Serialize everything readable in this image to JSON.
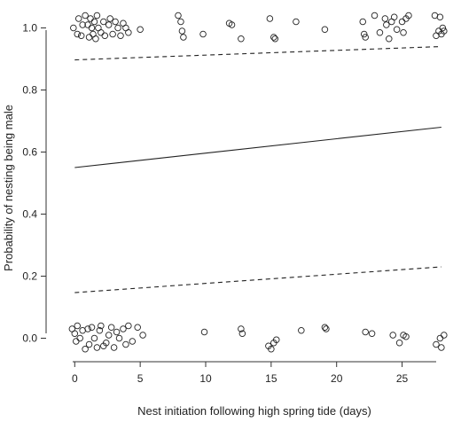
{
  "chart_data": {
    "type": "scatter",
    "title": "",
    "xlabel": "Nest initiation following high spring tide (days)",
    "ylabel": "Probability of nesting being male",
    "xlim": [
      -2,
      29.5
    ],
    "ylim": [
      -0.09,
      1.09
    ],
    "xticks": [
      0,
      5,
      10,
      15,
      20,
      25
    ],
    "yticks": [
      0.0,
      0.2,
      0.4,
      0.6,
      0.8,
      1.0
    ],
    "ytick_labels": [
      "0.0",
      "0.2",
      "0.4",
      "0.6",
      "0.8",
      "1.0"
    ],
    "grid": false,
    "legend": "none",
    "colors": {
      "points": "#222222",
      "lines": "#222222",
      "axis": "#333333"
    },
    "fitted": {
      "name": "",
      "style": "solid",
      "x": [
        0,
        28
      ],
      "y": [
        0.55,
        0.68
      ]
    },
    "ci_lower": {
      "name": "",
      "style": "dashed",
      "x": [
        0,
        28
      ],
      "y": [
        0.147,
        0.23
      ]
    },
    "ci_upper": {
      "name": "",
      "style": "dashed",
      "x": [
        0,
        28
      ],
      "y": [
        0.897,
        0.94
      ]
    },
    "series": [
      {
        "name": "",
        "marker": "open-circle",
        "points": [
          [
            -0.1,
            1.0
          ],
          [
            0.2,
            0.98
          ],
          [
            0.3,
            1.03
          ],
          [
            0.5,
            0.975
          ],
          [
            0.6,
            1.01
          ],
          [
            0.8,
            1.04
          ],
          [
            1.0,
            1.01
          ],
          [
            1.1,
            0.97
          ],
          [
            1.2,
            1.03
          ],
          [
            1.3,
            1.0
          ],
          [
            1.4,
            0.98
          ],
          [
            1.5,
            1.02
          ],
          [
            1.6,
            0.965
          ],
          [
            1.7,
            1.04
          ],
          [
            1.8,
            1.0
          ],
          [
            2.0,
            0.985
          ],
          [
            2.2,
            1.02
          ],
          [
            2.3,
            0.975
          ],
          [
            2.6,
            1.01
          ],
          [
            2.7,
            1.03
          ],
          [
            2.9,
            0.98
          ],
          [
            3.1,
            1.02
          ],
          [
            3.3,
            1.0
          ],
          [
            3.5,
            0.975
          ],
          [
            3.7,
            1.015
          ],
          [
            3.9,
            1.0
          ],
          [
            4.1,
            0.985
          ],
          [
            5.0,
            0.995
          ],
          [
            7.9,
            1.04
          ],
          [
            8.1,
            1.02
          ],
          [
            8.2,
            0.99
          ],
          [
            8.3,
            0.97
          ],
          [
            9.8,
            0.98
          ],
          [
            11.8,
            1.015
          ],
          [
            12.0,
            1.01
          ],
          [
            12.7,
            0.965
          ],
          [
            14.9,
            1.03
          ],
          [
            15.2,
            0.97
          ],
          [
            15.3,
            0.965
          ],
          [
            16.9,
            1.02
          ],
          [
            19.1,
            0.995
          ],
          [
            22.0,
            1.02
          ],
          [
            22.1,
            0.98
          ],
          [
            22.2,
            0.97
          ],
          [
            22.9,
            1.04
          ],
          [
            23.3,
            0.985
          ],
          [
            23.7,
            1.03
          ],
          [
            23.8,
            1.01
          ],
          [
            24.0,
            0.965
          ],
          [
            24.2,
            1.02
          ],
          [
            24.4,
            1.035
          ],
          [
            24.6,
            0.995
          ],
          [
            25.0,
            1.02
          ],
          [
            25.1,
            0.985
          ],
          [
            25.3,
            1.03
          ],
          [
            25.5,
            1.04
          ],
          [
            27.5,
            1.04
          ],
          [
            27.6,
            0.975
          ],
          [
            27.8,
            0.99
          ],
          [
            27.9,
            1.035
          ],
          [
            28.0,
            0.98
          ],
          [
            28.1,
            1.0
          ],
          [
            28.2,
            0.99
          ],
          [
            -0.2,
            0.03
          ],
          [
            0.0,
            0.015
          ],
          [
            0.1,
            -0.01
          ],
          [
            0.2,
            0.04
          ],
          [
            0.4,
            0.0
          ],
          [
            0.6,
            0.025
          ],
          [
            0.8,
            -0.035
          ],
          [
            1.0,
            0.03
          ],
          [
            1.1,
            -0.02
          ],
          [
            1.3,
            0.035
          ],
          [
            1.5,
            0.0
          ],
          [
            1.7,
            -0.03
          ],
          [
            1.9,
            0.025
          ],
          [
            2.0,
            0.04
          ],
          [
            2.2,
            -0.025
          ],
          [
            2.4,
            -0.015
          ],
          [
            2.6,
            0.01
          ],
          [
            2.8,
            0.035
          ],
          [
            3.0,
            -0.03
          ],
          [
            3.2,
            0.02
          ],
          [
            3.4,
            0.0
          ],
          [
            3.7,
            0.03
          ],
          [
            3.9,
            -0.02
          ],
          [
            4.1,
            0.04
          ],
          [
            4.4,
            -0.01
          ],
          [
            4.8,
            0.035
          ],
          [
            5.2,
            0.01
          ],
          [
            9.9,
            0.02
          ],
          [
            12.7,
            0.03
          ],
          [
            12.8,
            0.015
          ],
          [
            14.8,
            -0.025
          ],
          [
            15.0,
            -0.035
          ],
          [
            15.2,
            -0.015
          ],
          [
            15.4,
            -0.005
          ],
          [
            17.3,
            0.025
          ],
          [
            19.1,
            0.035
          ],
          [
            19.2,
            0.03
          ],
          [
            22.2,
            0.02
          ],
          [
            22.7,
            0.015
          ],
          [
            24.3,
            0.01
          ],
          [
            24.8,
            -0.015
          ],
          [
            25.1,
            0.01
          ],
          [
            25.3,
            0.005
          ],
          [
            27.6,
            -0.02
          ],
          [
            27.9,
            0.0
          ],
          [
            28.0,
            -0.03
          ],
          [
            28.2,
            0.01
          ]
        ]
      }
    ]
  }
}
